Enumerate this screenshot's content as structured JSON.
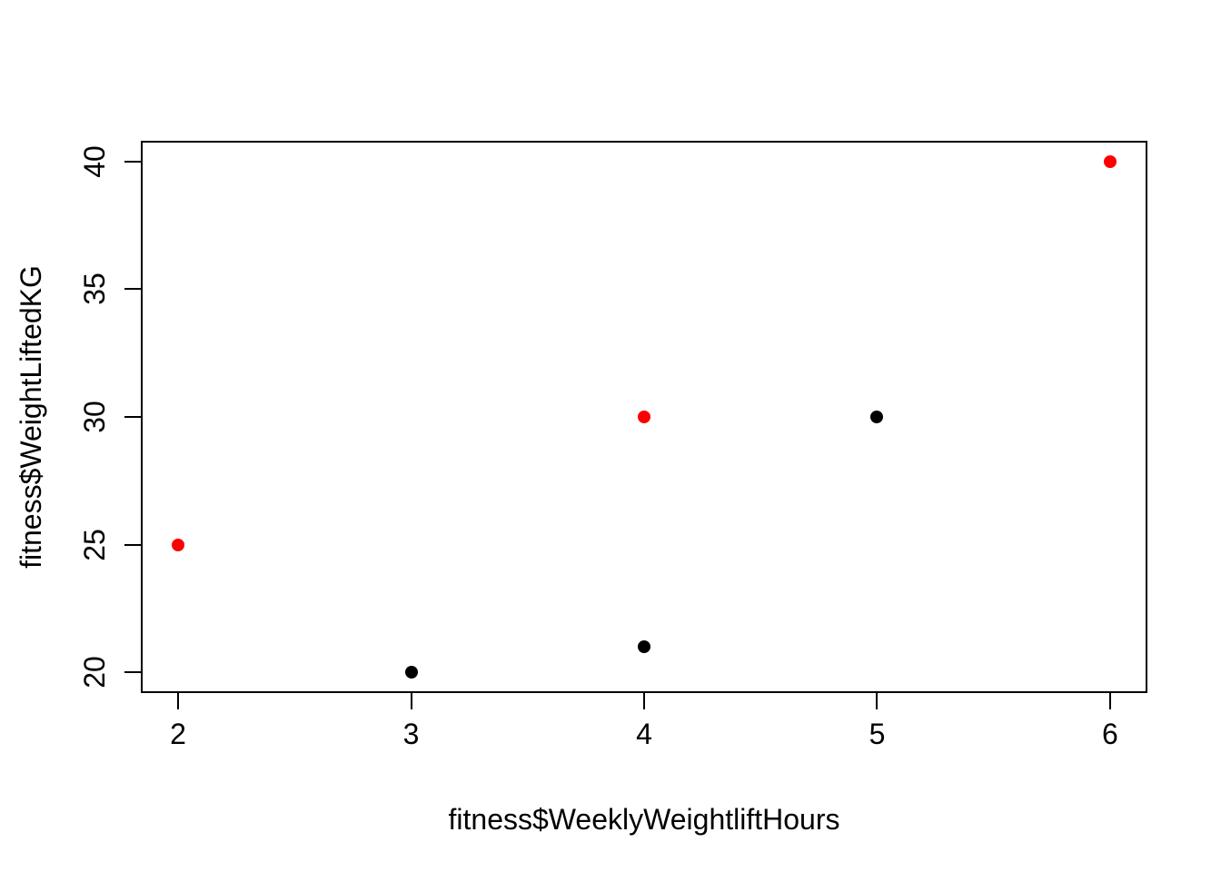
{
  "figure": {
    "background": "#FFFFFF",
    "axis_color": "#000000",
    "text_color": "#000000"
  },
  "chart_data": {
    "type": "scatter",
    "title": "",
    "xlabel": "fitness$WeeklyWeightliftHours",
    "ylabel": "fitness$WeightLiftedKG",
    "points": [
      {
        "x": 2,
        "y": 25,
        "color": "#FF0000"
      },
      {
        "x": 3,
        "y": 20,
        "color": "#000000"
      },
      {
        "x": 4,
        "y": 21,
        "color": "#000000"
      },
      {
        "x": 4,
        "y": 30,
        "color": "#FF0000"
      },
      {
        "x": 5,
        "y": 30,
        "color": "#000000"
      },
      {
        "x": 6,
        "y": 40,
        "color": "#FF0000"
      }
    ],
    "series_colors": [
      "#FF0000",
      "#000000"
    ],
    "xticks": [
      "2",
      "3",
      "4",
      "5",
      "6"
    ],
    "yticks": [
      "20",
      "25",
      "30",
      "35",
      "40"
    ],
    "x_data_range": [
      2,
      6
    ],
    "y_data_range": [
      20,
      40
    ],
    "xlim": [
      1.84,
      6.16
    ],
    "ylim": [
      19.2,
      40.8
    ],
    "grid": false,
    "legend": null,
    "point_radius": 7
  }
}
